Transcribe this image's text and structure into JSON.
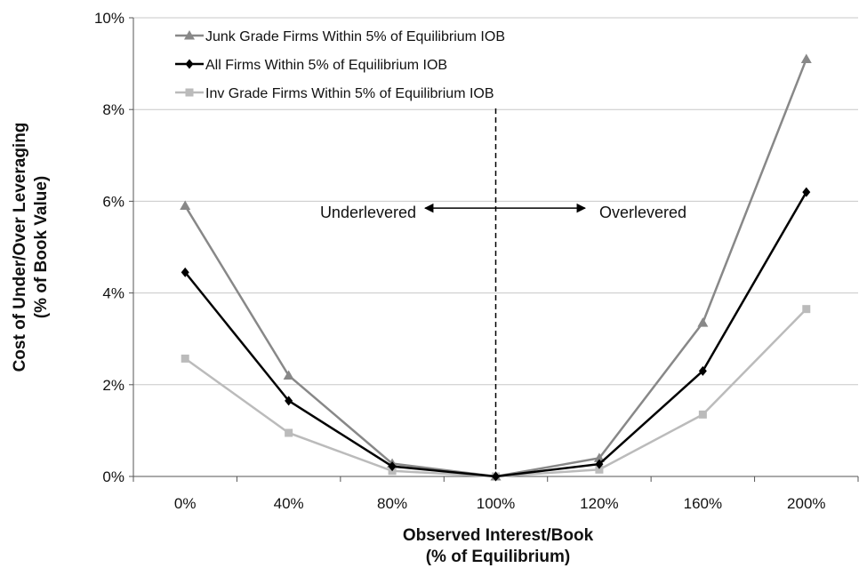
{
  "chart_data": {
    "type": "line",
    "categories": [
      "0%",
      "40%",
      "80%",
      "100%",
      "120%",
      "160%",
      "200%"
    ],
    "xlabel": [
      "Observed Interest/Book",
      "(% of Equilibrium)"
    ],
    "ylabel": [
      "Cost of Under/Over Leveraging",
      "(% of Book Value)"
    ],
    "yticks": [
      "0%",
      "2%",
      "4%",
      "6%",
      "8%",
      "10%"
    ],
    "ylim": [
      0,
      10
    ],
    "grid": "horizontal",
    "legend_position": "top-left",
    "series": [
      {
        "name": "Junk Grade Firms Within 5% of Equilibrium IOB",
        "values": [
          5.9,
          2.2,
          0.28,
          0.0,
          0.4,
          3.35,
          9.1
        ],
        "color": "#888888",
        "marker": "triangle"
      },
      {
        "name": "All Firms Within 5% of Equilibrium IOB",
        "values": [
          4.45,
          1.65,
          0.22,
          0.0,
          0.27,
          2.3,
          6.2
        ],
        "color": "#000000",
        "marker": "diamond"
      },
      {
        "name": "Inv Grade Firms Within 5% of Equilibrium IOB",
        "values": [
          2.57,
          0.95,
          0.12,
          0.0,
          0.15,
          1.35,
          3.65
        ],
        "color": "#bbbbbb",
        "marker": "square"
      }
    ],
    "annotations": {
      "left_label": "Underlevered",
      "right_label": "Overlevered",
      "vline_category": "100%",
      "arrow_y": 5.85
    }
  }
}
